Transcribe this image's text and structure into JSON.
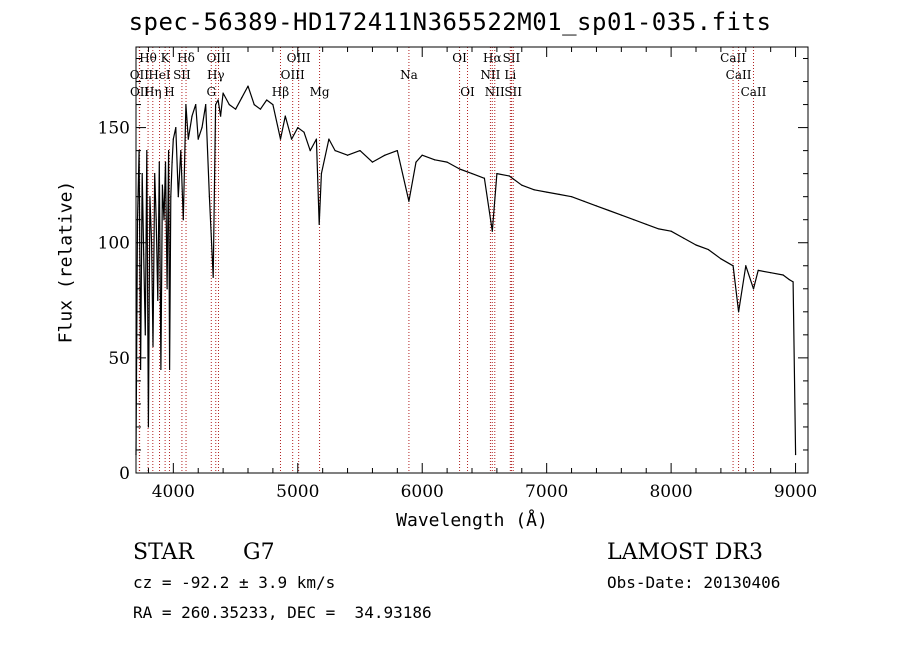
{
  "chart_data": {
    "type": "line",
    "title": "spec-56389-HD172411N365522M01_sp01-035.fits",
    "xlabel": "Wavelength (Å)",
    "ylabel": "Flux (relative)",
    "xlim": [
      3700,
      9100
    ],
    "ylim": [
      0,
      185
    ],
    "xticks": [
      4000,
      5000,
      6000,
      7000,
      8000,
      9000
    ],
    "yticks": [
      0,
      50,
      100,
      150
    ],
    "series": [
      {
        "name": "spectrum",
        "color": "#000000",
        "x": [
          3700,
          3712,
          3725,
          3737,
          3750,
          3762,
          3775,
          3787,
          3800,
          3812,
          3825,
          3837,
          3850,
          3862,
          3875,
          3887,
          3900,
          3912,
          3925,
          3937,
          3950,
          3962,
          3970,
          3980,
          3990,
          4000,
          4020,
          4040,
          4060,
          4080,
          4101,
          4120,
          4150,
          4180,
          4200,
          4230,
          4260,
          4290,
          4320,
          4340,
          4360,
          4380,
          4400,
          4450,
          4500,
          4550,
          4600,
          4650,
          4700,
          4750,
          4800,
          4861,
          4900,
          4950,
          5000,
          5050,
          5100,
          5150,
          5172,
          5190,
          5250,
          5300,
          5400,
          5500,
          5600,
          5700,
          5800,
          5893,
          5950,
          6000,
          6100,
          6200,
          6300,
          6400,
          6500,
          6563,
          6600,
          6700,
          6800,
          6900,
          7000,
          7100,
          7200,
          7300,
          7400,
          7500,
          7600,
          7700,
          7800,
          7900,
          8000,
          8100,
          8200,
          8300,
          8400,
          8498,
          8542,
          8600,
          8662,
          8700,
          8800,
          8900,
          8950,
          8980,
          9000
        ],
        "values": [
          8,
          110,
          140,
          45,
          130,
          95,
          60,
          140,
          20,
          120,
          100,
          55,
          130,
          110,
          75,
          135,
          45,
          125,
          110,
          135,
          80,
          140,
          45,
          120,
          135,
          145,
          150,
          120,
          140,
          110,
          160,
          145,
          155,
          160,
          145,
          150,
          160,
          120,
          85,
          160,
          162,
          155,
          165,
          160,
          158,
          163,
          168,
          160,
          158,
          162,
          160,
          145,
          155,
          145,
          150,
          148,
          140,
          145,
          108,
          130,
          145,
          140,
          138,
          140,
          135,
          138,
          140,
          118,
          135,
          138,
          136,
          135,
          132,
          130,
          128,
          105,
          130,
          129,
          125,
          123,
          122,
          121,
          120,
          118,
          116,
          114,
          112,
          110,
          108,
          106,
          105,
          102,
          99,
          97,
          93,
          90,
          70,
          90,
          80,
          88,
          87,
          86,
          84,
          83,
          8
        ]
      }
    ],
    "line_markers": [
      {
        "label": "Hθ",
        "wl": 3797,
        "row": 0
      },
      {
        "label": "OII",
        "wl": 3727,
        "row": 1
      },
      {
        "label": "OII",
        "wl": 3729,
        "row": 2
      },
      {
        "label": "Hη",
        "wl": 3835,
        "row": 2
      },
      {
        "label": "HeI",
        "wl": 3889,
        "row": 1
      },
      {
        "label": "K",
        "wl": 3934,
        "row": 0
      },
      {
        "label": "SII",
        "wl": 4069,
        "row": 1
      },
      {
        "label": "Hδ",
        "wl": 4102,
        "row": 0
      },
      {
        "label": "H",
        "wl": 3969,
        "row": 2
      },
      {
        "label": "OIII",
        "wl": 4363,
        "row": 0
      },
      {
        "label": "Hγ",
        "wl": 4341,
        "row": 1
      },
      {
        "label": "G",
        "wl": 4305,
        "row": 2
      },
      {
        "label": "Hβ",
        "wl": 4861,
        "row": 2
      },
      {
        "label": "OIII",
        "wl": 5007,
        "row": 0
      },
      {
        "label": "OIII",
        "wl": 4959,
        "row": 1
      },
      {
        "label": "Mg",
        "wl": 5175,
        "row": 2
      },
      {
        "label": "Na",
        "wl": 5893,
        "row": 1
      },
      {
        "label": "OI",
        "wl": 6300,
        "row": 0
      },
      {
        "label": "OI",
        "wl": 6364,
        "row": 2
      },
      {
        "label": "Hα",
        "wl": 6563,
        "row": 0
      },
      {
        "label": "NII",
        "wl": 6548,
        "row": 1
      },
      {
        "label": "NII",
        "wl": 6583,
        "row": 2
      },
      {
        "label": "SII",
        "wl": 6717,
        "row": 0
      },
      {
        "label": "Li",
        "wl": 6708,
        "row": 1
      },
      {
        "label": "SII",
        "wl": 6731,
        "row": 2
      },
      {
        "label": "CaII",
        "wl": 8498,
        "row": 0
      },
      {
        "label": "CaII",
        "wl": 8542,
        "row": 1
      },
      {
        "label": "CaII",
        "wl": 8662,
        "row": 2
      }
    ]
  },
  "info": {
    "object_type": "STAR",
    "subclass": "G7",
    "survey": "LAMOST DR3",
    "cz": "cz = -92.2 ± 3.9 km/s",
    "obs_date": "Obs-Date: 20130406",
    "coords": "RA = 260.35233, DEC =  34.93186"
  }
}
